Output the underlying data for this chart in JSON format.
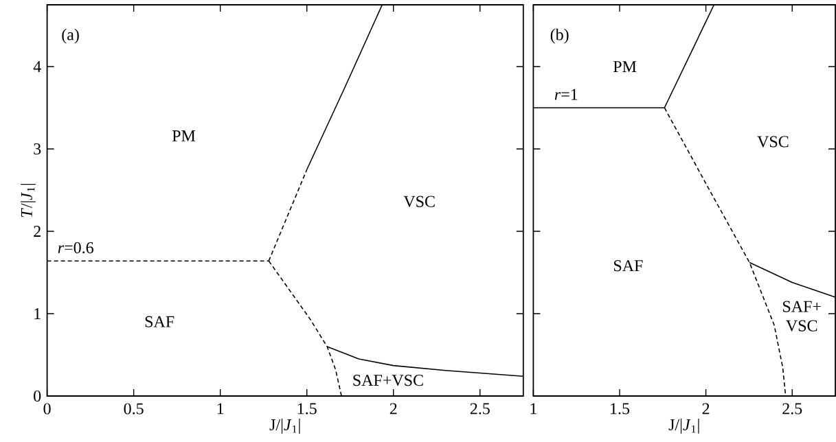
{
  "chart_data": [
    {
      "type": "line",
      "xlabel": "J/|*J*$_{1}$|",
      "ylabel": "*T*/|*J*$_{1}$|",
      "xlim": [
        0,
        2.75
      ],
      "ylim": [
        0,
        4.75
      ],
      "xticks": [
        0,
        0.5,
        1,
        1.5,
        2,
        2.5
      ],
      "yticks": [
        0,
        1,
        2,
        3,
        4
      ],
      "marker": "none",
      "series": [
        {
          "color": "#000000",
          "line_style": "dashed",
          "x": [
            0,
            1.28
          ],
          "values": [
            1.64,
            1.64
          ]
        },
        {
          "color": "#000000",
          "line_style": "dashed",
          "x": [
            1.28,
            1.5
          ],
          "values": [
            1.64,
            2.75
          ]
        },
        {
          "color": "#000000",
          "line_style": "solid",
          "x": [
            1.5,
            1.72,
            1.935
          ],
          "values": [
            2.75,
            3.75,
            4.75
          ]
        },
        {
          "color": "#000000",
          "line_style": "dashed",
          "x": [
            1.28,
            1.52,
            1.617,
            1.666,
            1.7
          ],
          "values": [
            1.64,
            0.93,
            0.6,
            0.32,
            0
          ]
        },
        {
          "color": "#000000",
          "line_style": "solid",
          "x": [
            1.617,
            1.8,
            2.0,
            2.3,
            2.75
          ],
          "values": [
            0.6,
            0.45,
            0.37,
            0.31,
            0.24
          ]
        }
      ],
      "annotations": [
        "(a)",
        "PM",
        "VSC",
        "SAF",
        "SAF+VSC",
        "*r*=0.6"
      ]
    },
    {
      "type": "line",
      "xlabel": "J/|*J*$_{1}$|",
      "xlim": [
        1,
        2.75
      ],
      "ylim": [
        0,
        4.75
      ],
      "xticks": [
        1,
        1.5,
        2,
        2.5
      ],
      "yticks": [
        0,
        1,
        2,
        3,
        4
      ],
      "tick_labels": "x",
      "marker": "none",
      "series": [
        {
          "color": "#000000",
          "line_style": "solid",
          "x": [
            1,
            1.76
          ],
          "values": [
            3.5,
            3.5
          ]
        },
        {
          "color": "#000000",
          "line_style": "solid",
          "x": [
            1.76,
            2.047
          ],
          "values": [
            3.5,
            4.75
          ]
        },
        {
          "color": "#000000",
          "line_style": "dashed",
          "x": [
            1.76,
            2.0,
            2.253,
            2.396,
            2.445,
            2.462
          ],
          "values": [
            3.5,
            2.58,
            1.62,
            0.86,
            0.35,
            0
          ]
        },
        {
          "color": "#000000",
          "line_style": "solid",
          "x": [
            2.253,
            2.5,
            2.75
          ],
          "values": [
            1.62,
            1.38,
            1.2
          ]
        }
      ],
      "annotations": [
        "(b)",
        "PM",
        "*r*=1",
        "VSC",
        "SAF",
        "SAF+ VSC"
      ]
    }
  ]
}
